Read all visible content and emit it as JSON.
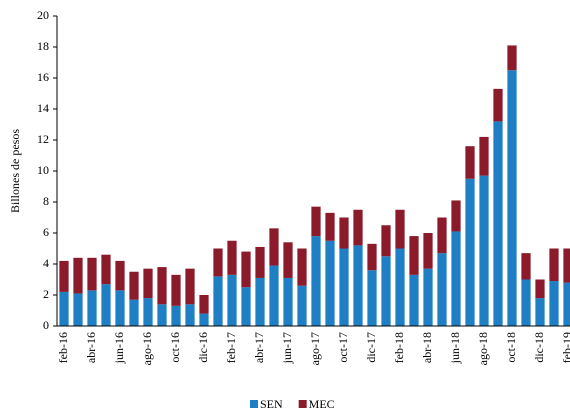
{
  "chart_data": {
    "type": "stacked-bar",
    "y_label": "Billones de pesos",
    "categories": [
      "feb-16",
      null,
      "abr-16",
      null,
      "jun-16",
      null,
      "ago-16",
      null,
      "oct-16",
      null,
      "dic-16",
      null,
      "feb-17",
      null,
      "abr-17",
      null,
      "jun-17",
      null,
      "ago-17",
      null,
      "oct-17",
      null,
      "dic-17",
      null,
      "feb-18",
      null,
      "abr-18",
      null,
      "jun-18",
      null,
      "ago-18",
      null,
      "oct-18",
      null,
      "dic-18",
      null,
      "feb-19"
    ],
    "series": [
      {
        "name": "SEN",
        "color": "#1f7fc4",
        "values": [
          2.2,
          2.1,
          2.3,
          2.7,
          2.3,
          1.7,
          1.8,
          1.4,
          1.3,
          1.4,
          0.8,
          3.2,
          3.3,
          2.5,
          3.1,
          3.9,
          3.1,
          2.6,
          5.8,
          5.5,
          5.0,
          5.2,
          3.6,
          4.5,
          5.0,
          3.3,
          3.7,
          4.7,
          6.1,
          9.5,
          9.7,
          13.2,
          16.5,
          3.0,
          1.8,
          2.9,
          2.8
        ]
      },
      {
        "name": "MEC",
        "color": "#8b1a2b",
        "values": [
          2.0,
          2.3,
          2.1,
          1.9,
          1.9,
          1.8,
          1.9,
          2.4,
          2.0,
          2.3,
          1.2,
          1.8,
          2.2,
          2.3,
          2.0,
          2.4,
          2.3,
          2.4,
          1.9,
          1.8,
          2.0,
          2.3,
          1.7,
          2.0,
          2.5,
          2.5,
          2.3,
          2.3,
          2.0,
          2.1,
          2.5,
          2.1,
          1.6,
          1.7,
          1.2,
          2.1,
          2.2
        ]
      }
    ],
    "ylim": [
      0,
      20
    ],
    "yticks": [
      0,
      2,
      4,
      6,
      8,
      10,
      12,
      14,
      16,
      18,
      20
    ],
    "grid": false
  }
}
